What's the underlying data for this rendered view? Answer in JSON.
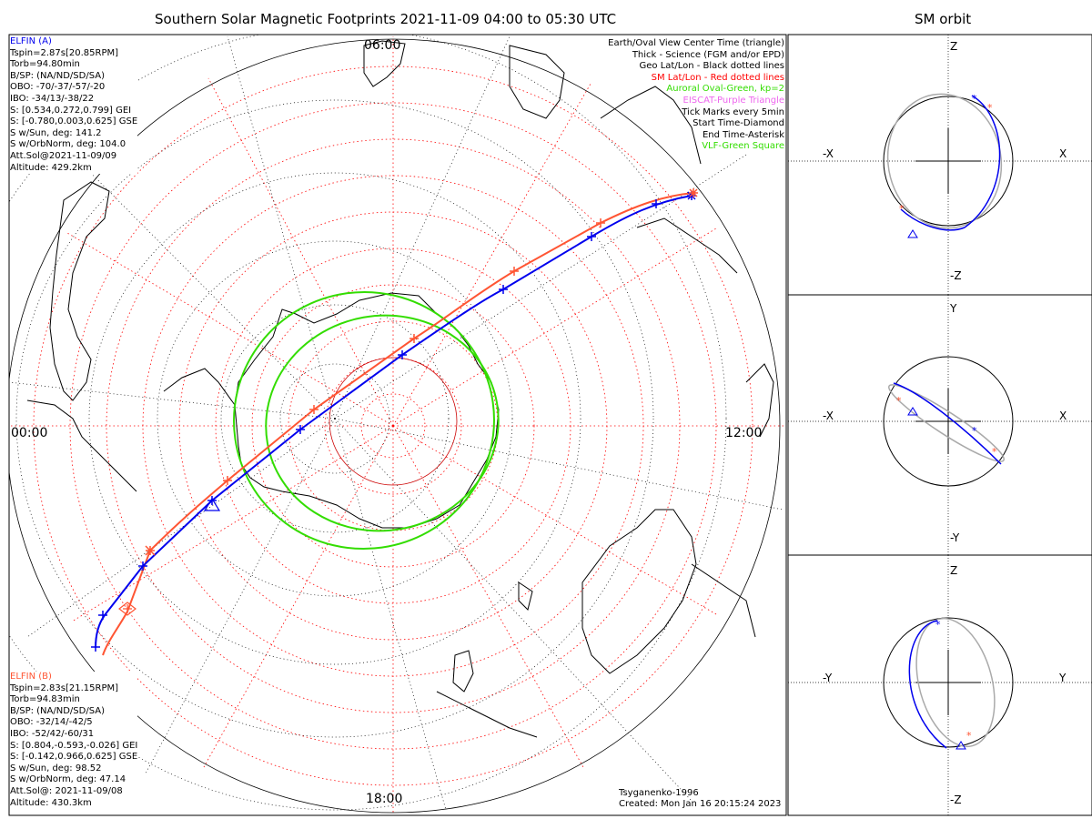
{
  "title": "Southern Solar Magnetic Footprints 2021-11-09 04:00 to 05:30 UTC",
  "side_title": "SM orbit",
  "clock_labels": {
    "top": "06:00",
    "left": "00:00",
    "right": "12:00",
    "bottom": "18:00"
  },
  "legend": [
    {
      "text": "Earth/Oval View Center Time (triangle)",
      "color": "#000000"
    },
    {
      "text": "Thick - Science (FGM and/or EPD)",
      "color": "#000000"
    },
    {
      "text": "Geo Lat/Lon - Black dotted lines",
      "color": "#000000"
    },
    {
      "text": "SM Lat/Lon - Red dotted lines",
      "color": "#ff0000"
    },
    {
      "text": "Auroral Oval-Green, kp=2",
      "color": "#33dd00"
    },
    {
      "text": "EISCAT-Purple Triangle",
      "color": "#ee66ee"
    },
    {
      "text": "Tick Marks every 5min",
      "color": "#000000"
    },
    {
      "text": "Start Time-Diamond",
      "color": "#000000"
    },
    {
      "text": "End Time-Asterisk",
      "color": "#000000"
    },
    {
      "text": "VLF-Green Square",
      "color": "#33dd00"
    }
  ],
  "elfin_a": {
    "color": "#0000ee",
    "lines": [
      "ELFIN (A)",
      "Tspin=2.87s[20.85RPM]",
      "Torb=94.80min",
      "B/SP: (NA/ND/SD/SA)",
      "OBO: -70/-37/-57/-20",
      "IBO: -34/13/-38/22",
      "S: [0.534,0.272,0.799] GEI",
      "S: [-0.780,0.003,0.625] GSE",
      "S w/Sun, deg: 141.2",
      "S w/OrbNorm, deg: 104.0",
      "Att.Sol@2021-11-09/09",
      "Altitude: 429.2km"
    ]
  },
  "elfin_b": {
    "color": "#ff5533",
    "lines": [
      "ELFIN (B)",
      "Tspin=2.83s[21.15RPM]",
      "Torb=94.83min",
      "B/SP: (NA/ND/SD/SA)",
      "OBO: -32/14/-42/5",
      "IBO: -52/42/-60/31",
      "S: [0.804,-0.593,-0.026] GEI",
      "S: [-0.142,0.966,0.625] GSE",
      "S w/Sun, deg: 98.52",
      "S w/OrbNorm, deg: 47.14",
      "Att.Sol@: 2021-11-09/08",
      "Altitude: 430.3km"
    ]
  },
  "credit": {
    "model": "Tsyganenko-1996",
    "created": "Created: Mon Jan 16 20:15:24 2023"
  },
  "orbit_panels": [
    {
      "top": "Z",
      "bottom": "-Z",
      "left": "-X",
      "right": "X"
    },
    {
      "top": "Y",
      "bottom": "-Y",
      "left": "-X",
      "right": "X"
    },
    {
      "top": "Z",
      "bottom": "-Z",
      "left": "-Y",
      "right": "Y"
    }
  ],
  "colors": {
    "elfin_a": "#0000ee",
    "elfin_b": "#ff5533",
    "oval": "#33dd00",
    "sm_grid": "#ff0000",
    "geo_grid": "#000000"
  }
}
